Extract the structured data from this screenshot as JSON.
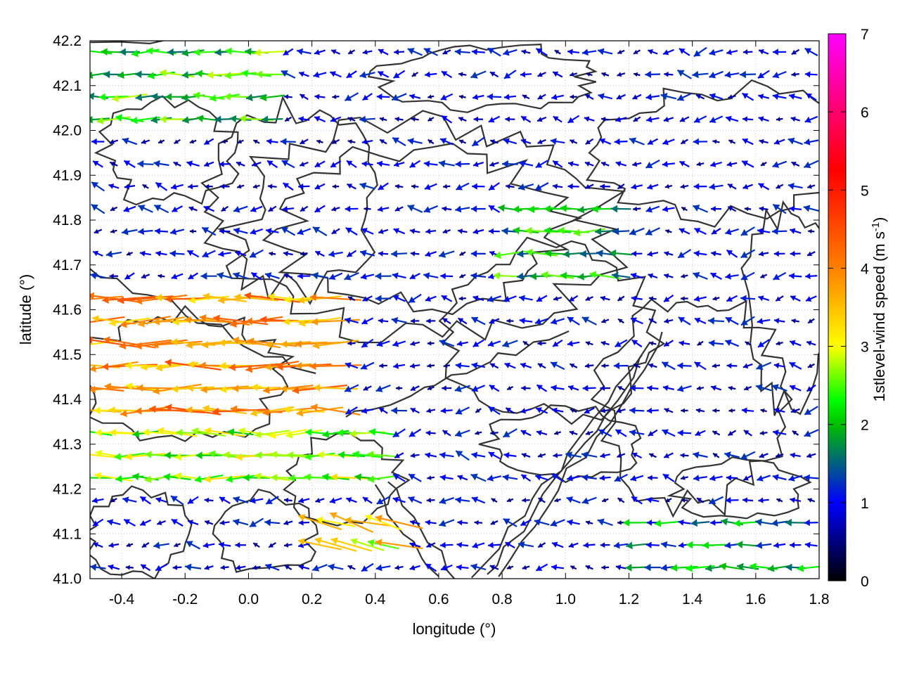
{
  "chart_data": {
    "type": "vector-field",
    "title": "",
    "xlabel": "longitude (°)",
    "ylabel": "latitude (°)",
    "xlim": [
      -0.5,
      1.8
    ],
    "ylim": [
      41.0,
      42.2
    ],
    "x_ticks": [
      -0.4,
      -0.2,
      0.0,
      0.2,
      0.4,
      0.6,
      0.8,
      1.0,
      1.2,
      1.4,
      1.6,
      1.8
    ],
    "x_tick_labels": [
      "-0.4",
      "-0.2",
      "0.0",
      "0.2",
      "0.4",
      "0.6",
      "0.8",
      "1.0",
      "1.2",
      "1.4",
      "1.6",
      "1.8"
    ],
    "y_ticks": [
      41.0,
      41.1,
      41.2,
      41.3,
      41.4,
      41.5,
      41.6,
      41.7,
      41.8,
      41.9,
      42.0,
      42.1,
      42.2
    ],
    "y_tick_labels": [
      "41.0",
      "41.1",
      "41.2",
      "41.3",
      "41.4",
      "41.5",
      "41.6",
      "41.7",
      "41.8",
      "41.9",
      "42.0",
      "42.1",
      "42.2"
    ],
    "grid": true,
    "colorbar": {
      "label_main": "1stlevel-wind speed (m s",
      "label_exponent": "-1",
      "label_close": ")",
      "range": [
        0,
        7
      ],
      "ticks": [
        0,
        1,
        2,
        3,
        4,
        5,
        6,
        7
      ],
      "tick_labels": [
        "0",
        "1",
        "2",
        "3",
        "4",
        "5",
        "6",
        "7"
      ],
      "palette": [
        "#000000",
        "#0000ff",
        "#00ff00",
        "#ffff00",
        "#ff8000",
        "#ff0000",
        "#ff00ff"
      ]
    },
    "vectors_description_grid": {
      "lon_step": 0.05,
      "lat_step": 0.05
    },
    "wind_regions": [
      {
        "lon": [
          -0.5,
          0.3
        ],
        "lat": [
          41.35,
          41.65
        ],
        "speed": 3.8,
        "direction_deg": 180
      },
      {
        "lon": [
          -0.5,
          0.45
        ],
        "lat": [
          41.2,
          41.35
        ],
        "speed": 2.6,
        "direction_deg": 180
      },
      {
        "lon": [
          -0.5,
          0.1
        ],
        "lat": [
          42.0,
          42.2
        ],
        "speed": 2.2,
        "direction_deg": 180
      },
      {
        "lon": [
          0.8,
          1.2
        ],
        "lat": [
          41.65,
          41.85
        ],
        "speed": 2.0,
        "direction_deg": 180
      },
      {
        "lon": [
          1.2,
          1.8
        ],
        "lat": [
          41.0,
          41.15
        ],
        "speed": 1.6,
        "direction_deg": 180
      },
      {
        "lon": [
          0.2,
          0.5
        ],
        "lat": [
          41.05,
          41.15
        ],
        "speed": 3.2,
        "direction_deg": 165
      }
    ],
    "background_speed": 0.9
  }
}
